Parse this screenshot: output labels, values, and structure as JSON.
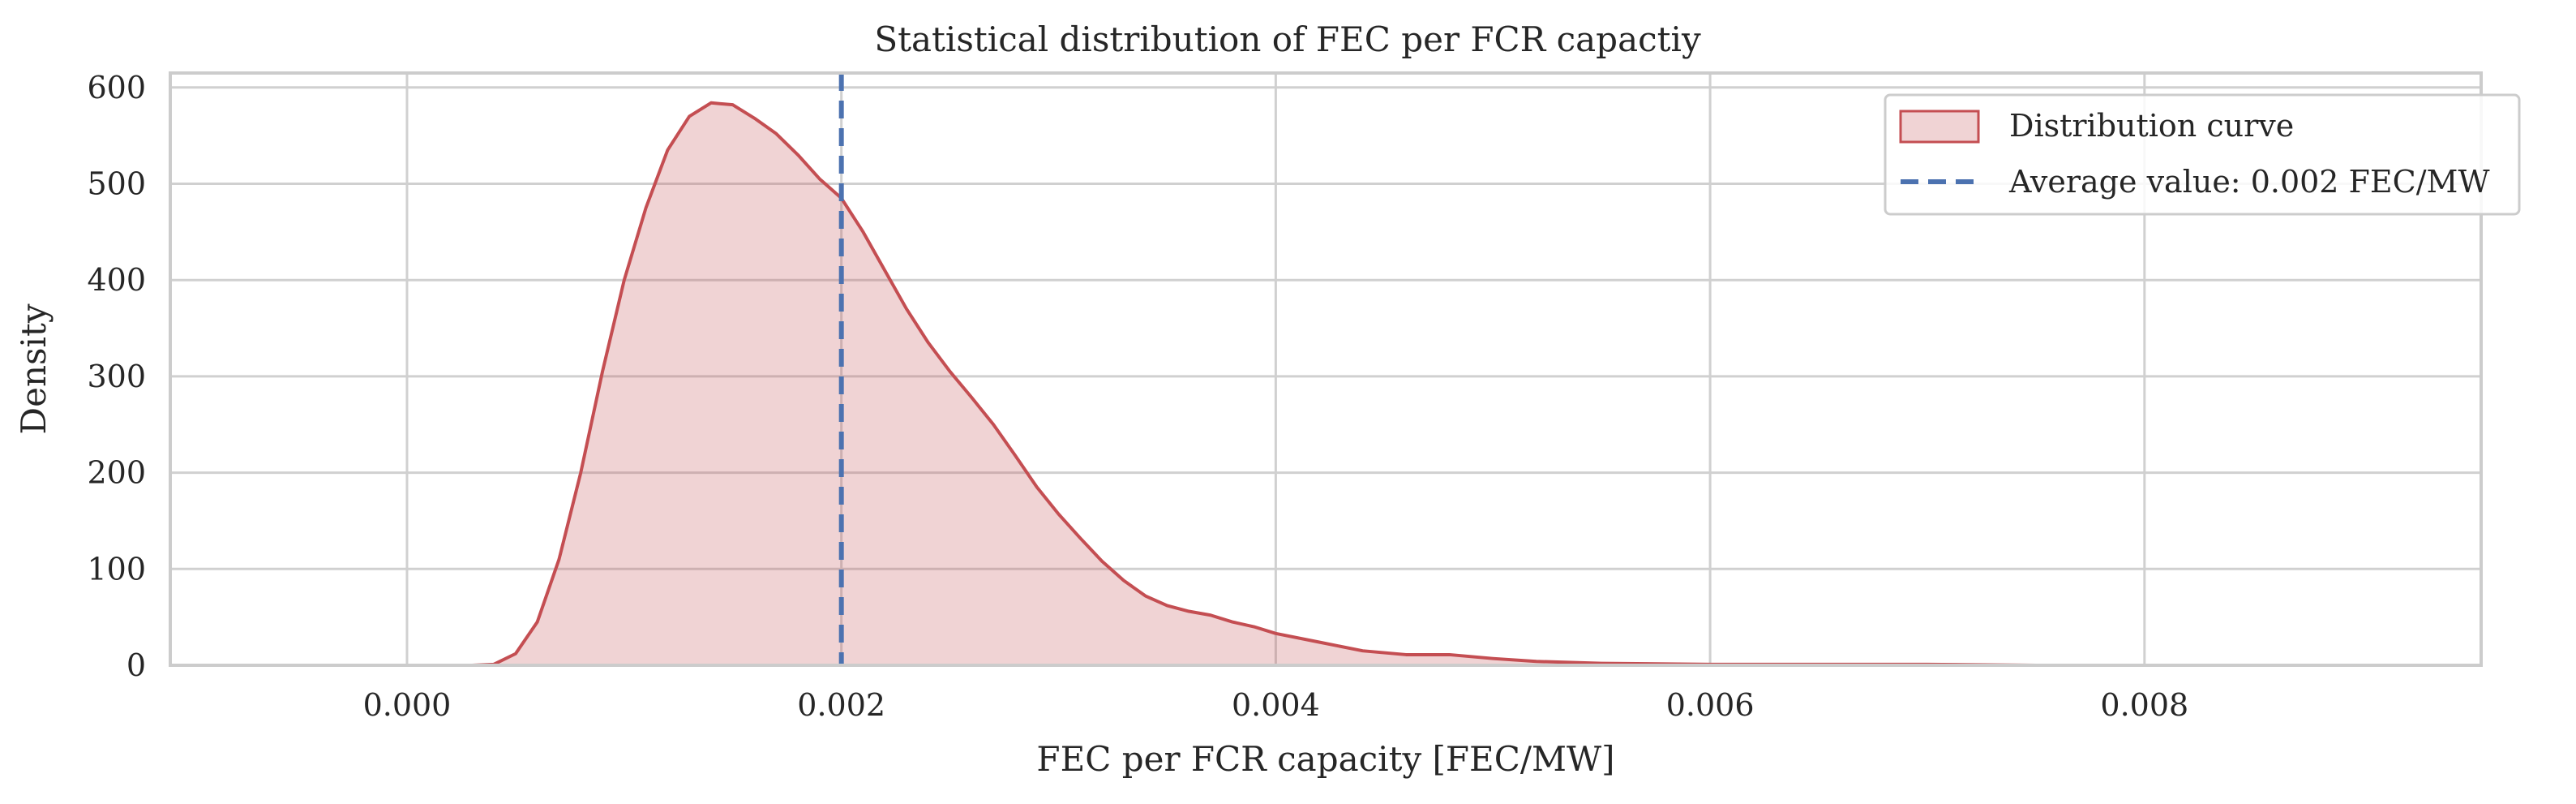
{
  "chart_data": {
    "type": "area",
    "title": "Statistical distribution of FEC per FCR capactiy",
    "xlabel": "FEC per FCR capacity [FEC/MW]",
    "ylabel": "Density",
    "xlim": [
      -0.00109,
      0.00955
    ],
    "ylim": [
      0,
      615
    ],
    "xticks": [
      0.0,
      0.002,
      0.004,
      0.006,
      0.008
    ],
    "xtick_labels": [
      "0.000",
      "0.002",
      "0.004",
      "0.006",
      "0.008"
    ],
    "yticks": [
      0,
      100,
      200,
      300,
      400,
      500,
      600
    ],
    "ytick_labels": [
      "0",
      "100",
      "200",
      "300",
      "400",
      "500",
      "600"
    ],
    "grid": true,
    "legend_position": "top-right",
    "series": [
      {
        "name": "Distribution curve",
        "kind": "kde-fill",
        "x": [
          -0.0004,
          0.0,
          0.0003,
          0.0004,
          0.0005,
          0.0006,
          0.0007,
          0.0008,
          0.0009,
          0.001,
          0.0011,
          0.0012,
          0.0013,
          0.0014,
          0.0015,
          0.0016,
          0.0017,
          0.0018,
          0.0019,
          0.002,
          0.0021,
          0.0022,
          0.0023,
          0.0024,
          0.0025,
          0.0026,
          0.0027,
          0.0028,
          0.0029,
          0.003,
          0.0031,
          0.0032,
          0.0033,
          0.0034,
          0.0035,
          0.0036,
          0.0037,
          0.0038,
          0.0039,
          0.004,
          0.0042,
          0.0044,
          0.0046,
          0.0048,
          0.005,
          0.0052,
          0.0055,
          0.006,
          0.0065,
          0.007,
          0.0075,
          0.008,
          0.0085,
          0.0091
        ],
        "y": [
          0,
          0,
          0,
          1,
          12,
          45,
          110,
          200,
          305,
          400,
          475,
          535,
          570,
          584,
          582,
          568,
          552,
          530,
          505,
          485,
          450,
          410,
          370,
          335,
          305,
          278,
          250,
          218,
          185,
          157,
          132,
          108,
          88,
          72,
          62,
          56,
          52,
          45,
          40,
          33,
          24,
          15,
          11,
          11,
          7,
          4,
          2,
          1,
          1,
          1,
          0,
          0,
          0,
          0
        ],
        "color": "#c44e52",
        "fill_color": "#c44e52",
        "fill_opacity": 0.25
      },
      {
        "name": "Average value: 0.002 FEC/MW",
        "kind": "vline",
        "x": 0.002,
        "color": "#4c72b0",
        "dash": "dashed"
      }
    ]
  }
}
